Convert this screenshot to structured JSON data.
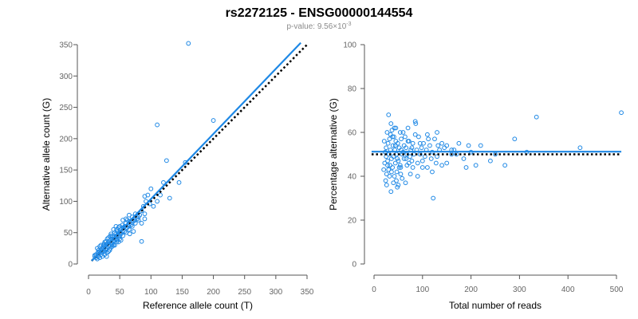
{
  "title": "rs2272125 - ENSG00000144554",
  "subtitle_prefix": "p-value: 9.56×10",
  "subtitle_exponent": "-3",
  "colors": {
    "points": "#1e88e5",
    "fit_line": "#1e88e5",
    "reference_line": "#000000",
    "axis": "#555555",
    "tick_text": "#666666"
  },
  "chart_data": [
    {
      "type": "scatter",
      "title": "",
      "xlabel": "Reference allele count (T)",
      "ylabel": "Alternative allele count (G)",
      "xlim": [
        0,
        350
      ],
      "ylim": [
        0,
        350
      ],
      "xticks": [
        0,
        50,
        100,
        150,
        200,
        250,
        300,
        350
      ],
      "yticks": [
        0,
        50,
        100,
        150,
        200,
        250,
        300,
        350
      ],
      "grid": false,
      "fit_line": {
        "from": [
          5,
          5
        ],
        "to": [
          340,
          353
        ]
      },
      "reference_line": {
        "from": [
          5,
          5
        ],
        "to": [
          350,
          350
        ]
      },
      "points": [
        [
          160,
          352
        ],
        [
          110,
          222
        ],
        [
          200,
          229
        ],
        [
          125,
          165
        ],
        [
          155,
          162
        ],
        [
          120,
          130
        ],
        [
          145,
          130
        ],
        [
          100,
          120
        ],
        [
          90,
          108
        ],
        [
          95,
          110
        ],
        [
          110,
          100
        ],
        [
          130,
          105
        ],
        [
          85,
          85
        ],
        [
          75,
          80
        ],
        [
          80,
          75
        ],
        [
          70,
          75
        ],
        [
          65,
          78
        ],
        [
          62,
          70
        ],
        [
          60,
          65
        ],
        [
          55,
          70
        ],
        [
          58,
          60
        ],
        [
          52,
          55
        ],
        [
          50,
          50
        ],
        [
          48,
          58
        ],
        [
          45,
          45
        ],
        [
          42,
          50
        ],
        [
          40,
          42
        ],
        [
          38,
          40
        ],
        [
          35,
          38
        ],
        [
          33,
          35
        ],
        [
          30,
          32
        ],
        [
          28,
          30
        ],
        [
          25,
          28
        ],
        [
          22,
          25
        ],
        [
          20,
          22
        ],
        [
          18,
          20
        ],
        [
          15,
          18
        ],
        [
          12,
          15
        ],
        [
          10,
          12
        ],
        [
          30,
          40
        ],
        [
          35,
          45
        ],
        [
          40,
          35
        ],
        [
          45,
          55
        ],
        [
          50,
          40
        ],
        [
          55,
          45
        ],
        [
          60,
          50
        ],
        [
          65,
          55
        ],
        [
          70,
          60
        ],
        [
          75,
          65
        ],
        [
          80,
          70
        ],
        [
          85,
          36
        ],
        [
          90,
          80
        ],
        [
          25,
          20
        ],
        [
          20,
          15
        ],
        [
          15,
          12
        ],
        [
          12,
          10
        ],
        [
          28,
          22
        ],
        [
          32,
          28
        ],
        [
          38,
          32
        ],
        [
          42,
          38
        ],
        [
          48,
          42
        ],
        [
          52,
          48
        ],
        [
          58,
          52
        ],
        [
          62,
          58
        ],
        [
          68,
          62
        ],
        [
          72,
          68
        ],
        [
          78,
          72
        ],
        [
          35,
          25
        ],
        [
          40,
          30
        ],
        [
          45,
          35
        ],
        [
          50,
          45
        ],
        [
          24,
          30
        ],
        [
          26,
          35
        ],
        [
          30,
          25
        ],
        [
          34,
          30
        ],
        [
          36,
          33
        ],
        [
          18,
          28
        ],
        [
          22,
          18
        ],
        [
          16,
          22
        ],
        [
          14,
          25
        ],
        [
          44,
          48
        ],
        [
          46,
          52
        ],
        [
          54,
          62
        ],
        [
          56,
          58
        ],
        [
          64,
          60
        ],
        [
          66,
          68
        ],
        [
          74,
          70
        ],
        [
          82,
          78
        ],
        [
          88,
          92
        ],
        [
          92,
          100
        ],
        [
          98,
          96
        ],
        [
          104,
          92
        ],
        [
          115,
          110
        ],
        [
          26,
          15
        ],
        [
          30,
          18
        ],
        [
          34,
          22
        ],
        [
          38,
          28
        ],
        [
          42,
          30
        ],
        [
          46,
          38
        ],
        [
          20,
          30
        ],
        [
          24,
          26
        ],
        [
          28,
          36
        ],
        [
          32,
          42
        ],
        [
          36,
          48
        ],
        [
          40,
          55
        ],
        [
          44,
          60
        ],
        [
          22,
          12
        ],
        [
          18,
          10
        ],
        [
          14,
          8
        ],
        [
          10,
          14
        ],
        [
          16,
          16
        ],
        [
          50,
          60
        ],
        [
          55,
          52
        ],
        [
          60,
          72
        ],
        [
          65,
          62
        ],
        [
          70,
          70
        ],
        [
          25,
          32
        ],
        [
          45,
          40
        ],
        [
          38,
          45
        ],
        [
          52,
          38
        ],
        [
          48,
          35
        ],
        [
          85,
          65
        ],
        [
          90,
          72
        ],
        [
          72,
          52
        ],
        [
          66,
          48
        ],
        [
          32,
          20
        ],
        [
          27,
          24
        ],
        [
          21,
          20
        ],
        [
          29,
          12
        ]
      ]
    },
    {
      "type": "scatter",
      "title": "",
      "xlabel": "Total number of reads",
      "ylabel": "Percentage alternative (G)",
      "xlim": [
        0,
        500
      ],
      "ylim": [
        0,
        100
      ],
      "xticks": [
        0,
        100,
        200,
        300,
        400,
        500
      ],
      "yticks": [
        0,
        20,
        40,
        60,
        80,
        100
      ],
      "grid": false,
      "fit_line": {
        "from": [
          -5,
          51.2
        ],
        "to": [
          510,
          51.2
        ]
      },
      "reference_line": {
        "from": [
          -5,
          50
        ],
        "to": [
          510,
          50
        ]
      },
      "points": [
        [
          510,
          69
        ],
        [
          335,
          67
        ],
        [
          425,
          53
        ],
        [
          315,
          51
        ],
        [
          290,
          57
        ],
        [
          270,
          45
        ],
        [
          250,
          50
        ],
        [
          240,
          47
        ],
        [
          220,
          54
        ],
        [
          210,
          45
        ],
        [
          200,
          51
        ],
        [
          195,
          54
        ],
        [
          185,
          48
        ],
        [
          175,
          55
        ],
        [
          165,
          52
        ],
        [
          160,
          50
        ],
        [
          150,
          46
        ],
        [
          145,
          53
        ],
        [
          140,
          55
        ],
        [
          135,
          52
        ],
        [
          132,
          54
        ],
        [
          130,
          49
        ],
        [
          128,
          46
        ],
        [
          125,
          57
        ],
        [
          122,
          30
        ],
        [
          120,
          51
        ],
        [
          118,
          48
        ],
        [
          115,
          54
        ],
        [
          112,
          57
        ],
        [
          110,
          44
        ],
        [
          108,
          52
        ],
        [
          105,
          49
        ],
        [
          102,
          55
        ],
        [
          100,
          47
        ],
        [
          98,
          53
        ],
        [
          95,
          50
        ],
        [
          92,
          58
        ],
        [
          90,
          46
        ],
        [
          88,
          52
        ],
        [
          86,
          64
        ],
        [
          85,
          65
        ],
        [
          82,
          50
        ],
        [
          80,
          55
        ],
        [
          78,
          47
        ],
        [
          76,
          52
        ],
        [
          74,
          49
        ],
        [
          72,
          56
        ],
        [
          70,
          62
        ],
        [
          68,
          45
        ],
        [
          66,
          53
        ],
        [
          64,
          58
        ],
        [
          62,
          48
        ],
        [
          60,
          51
        ],
        [
          58,
          39
        ],
        [
          56,
          57
        ],
        [
          55,
          44
        ],
        [
          54,
          60
        ],
        [
          52,
          53
        ],
        [
          50,
          47
        ],
        [
          49,
          55
        ],
        [
          48,
          35
        ],
        [
          47,
          42
        ],
        [
          46,
          50
        ],
        [
          45,
          56
        ],
        [
          44,
          46
        ],
        [
          43,
          52
        ],
        [
          42,
          40
        ],
        [
          41,
          58
        ],
        [
          40,
          49
        ],
        [
          39,
          54
        ],
        [
          38,
          44
        ],
        [
          37,
          61
        ],
        [
          36,
          48
        ],
        [
          35,
          33
        ],
        [
          34,
          52
        ],
        [
          33,
          45
        ],
        [
          32,
          57
        ],
        [
          31,
          50
        ],
        [
          30,
          43
        ],
        [
          29,
          55
        ],
        [
          28,
          47
        ],
        [
          27,
          60
        ],
        [
          26,
          41
        ],
        [
          25,
          53
        ],
        [
          25,
          49
        ],
        [
          24,
          38
        ],
        [
          23,
          51
        ],
        [
          22,
          46
        ],
        [
          21,
          56
        ],
        [
          20,
          43
        ],
        [
          30,
          68
        ],
        [
          35,
          64
        ],
        [
          40,
          37
        ],
        [
          45,
          62
        ],
        [
          50,
          36
        ],
        [
          55,
          41
        ],
        [
          60,
          60
        ],
        [
          65,
          37
        ],
        [
          70,
          56
        ],
        [
          75,
          41
        ],
        [
          80,
          44
        ],
        [
          85,
          59
        ],
        [
          90,
          40
        ],
        [
          95,
          55
        ],
        [
          100,
          44
        ],
        [
          110,
          59
        ],
        [
          120,
          42
        ],
        [
          130,
          60
        ],
        [
          140,
          45
        ],
        [
          150,
          54
        ],
        [
          160,
          52
        ],
        [
          170,
          50
        ],
        [
          190,
          44
        ],
        [
          38,
          58
        ],
        [
          42,
          62
        ],
        [
          48,
          48
        ],
        [
          52,
          44
        ],
        [
          58,
          50
        ],
        [
          62,
          54
        ],
        [
          68,
          50
        ],
        [
          72,
          46
        ],
        [
          78,
          53
        ],
        [
          26,
          36
        ],
        [
          28,
          45
        ],
        [
          32,
          40
        ],
        [
          34,
          59
        ],
        [
          36,
          42
        ],
        [
          44,
          54
        ],
        [
          46,
          38
        ],
        [
          54,
          45
        ],
        [
          56,
          52
        ],
        [
          66,
          48
        ]
      ]
    }
  ]
}
